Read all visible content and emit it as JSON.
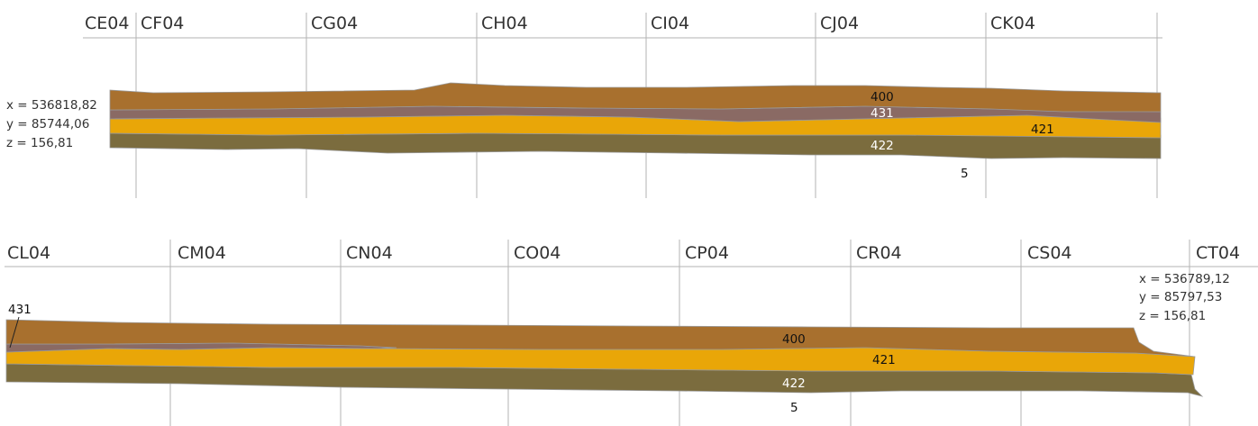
{
  "profile_top": {
    "columns": [
      "CE04",
      "CF04",
      "CG04",
      "CH04",
      "CI04",
      "CJ04",
      "CK04"
    ],
    "coords": [
      "x = 536818,82",
      "y = 85744,06",
      "z = 156,81"
    ],
    "labels": {
      "l400": "400",
      "l431": "431",
      "l421": "421",
      "l422": "422",
      "l5": "5"
    }
  },
  "profile_bottom": {
    "columns": [
      "CL04",
      "CM04",
      "CN04",
      "CO04",
      "CP04",
      "CR04",
      "CS04",
      "CT04"
    ],
    "coords": [
      "x = 536789,12",
      "y = 85797,53",
      "z = 156,81"
    ],
    "labels": {
      "l431": "431",
      "l400": "400",
      "l421": "421",
      "l422": "422",
      "l5": "5"
    }
  },
  "colors": {
    "layer_400": "#a8702e",
    "layer_431": "#8a6a64",
    "layer_421": "#e9a608",
    "layer_422": "#7b6c3e",
    "boundary": "#9a9a9a",
    "grid": "#b3b3b3"
  }
}
